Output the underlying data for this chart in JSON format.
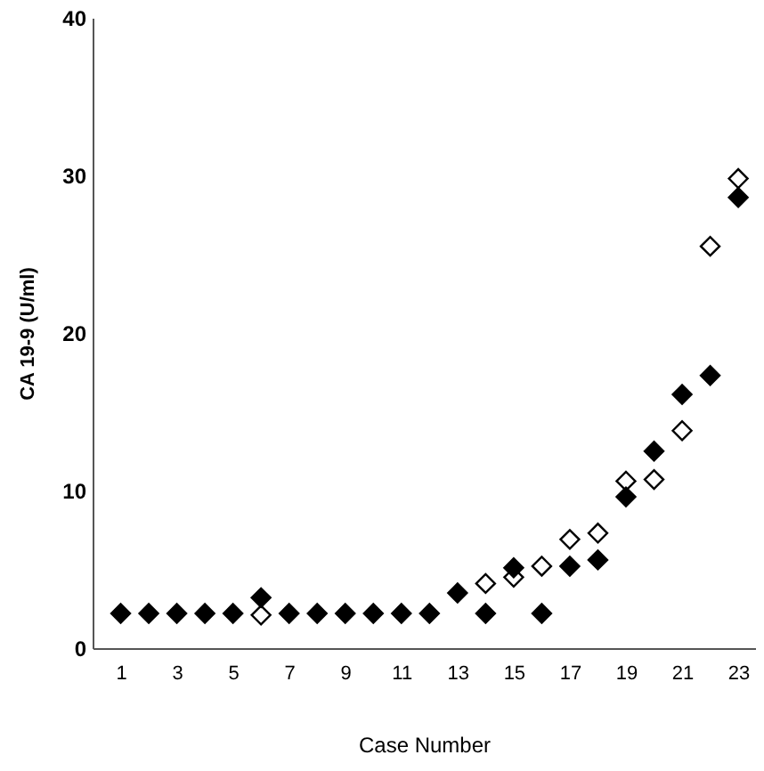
{
  "chart_data": {
    "type": "scatter",
    "xlabel": "Case Number",
    "ylabel": "CA 19-9 (U/ml)",
    "x": [
      1,
      2,
      3,
      4,
      5,
      6,
      7,
      8,
      9,
      10,
      11,
      12,
      13,
      14,
      15,
      16,
      17,
      18,
      19,
      20,
      21,
      22,
      23
    ],
    "series": [
      {
        "color": "#000000",
        "marker": "diamond",
        "values": [
          2.2,
          2.2,
          2.2,
          2.2,
          2.2,
          3.2,
          2.2,
          2.2,
          2.2,
          2.2,
          2.2,
          2.2,
          3.5,
          2.2,
          5.1,
          2.2,
          5.2,
          5.6,
          9.6,
          12.5,
          16.1,
          17.3,
          28.6
        ]
      },
      {
        "color": "#ffffff",
        "marker": "diamond",
        "values": [
          null,
          null,
          null,
          null,
          null,
          2.1,
          null,
          null,
          null,
          null,
          null,
          null,
          null,
          4.1,
          4.5,
          5.2,
          6.9,
          7.3,
          10.6,
          10.7,
          13.8,
          25.5,
          29.8
        ]
      }
    ],
    "xlim": [
      0,
      23.6
    ],
    "xticks": [
      1,
      3,
      5,
      7,
      9,
      11,
      13,
      15,
      17,
      19,
      21,
      23
    ],
    "ylim": [
      0,
      40
    ],
    "yticks": [
      0,
      10,
      20,
      30,
      40
    ],
    "grid": false
  }
}
